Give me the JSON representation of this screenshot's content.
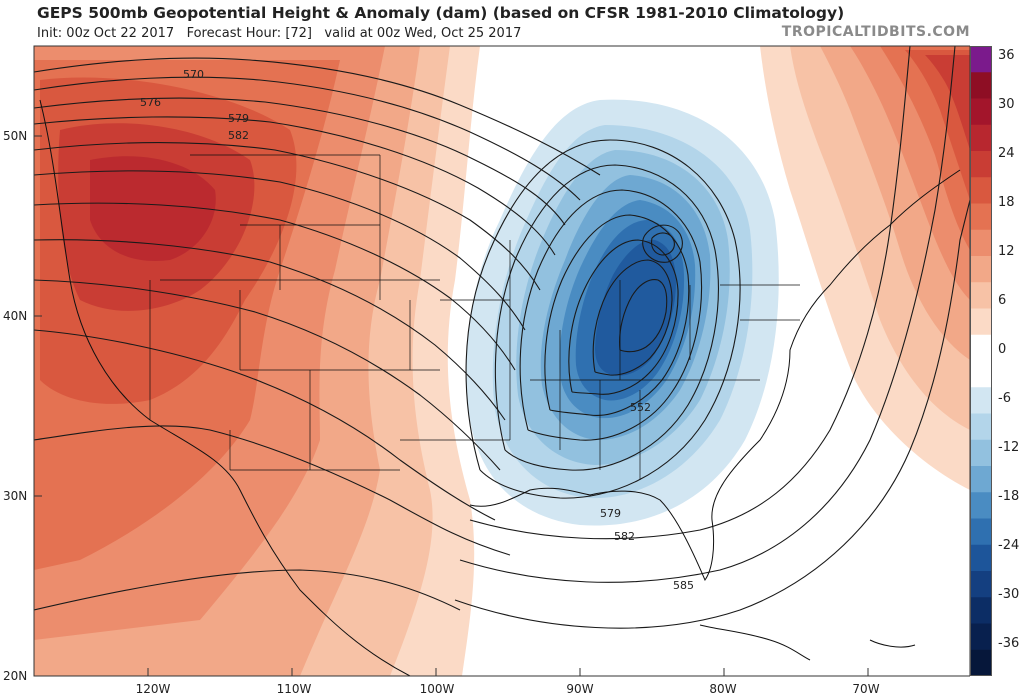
{
  "header": {
    "title": "GEPS 500mb Geopotential Height & Anomaly (dam) (based on CFSR 1981-2010 Climatology)",
    "init": "Init: 00z Oct 22 2017",
    "forecast_hour": "Forecast Hour: [72]",
    "valid": "valid at 00z Wed, Oct 25 2017",
    "brand": "TROPICALTIDBITS.COM"
  },
  "map": {
    "lat_labels": [
      "50N",
      "40N",
      "30N",
      "20N"
    ],
    "lon_labels": [
      "120W",
      "110W",
      "100W",
      "90W",
      "80W",
      "70W"
    ],
    "contour_labels": [
      "570",
      "576",
      "579",
      "582",
      "552",
      "579",
      "582",
      "585"
    ]
  },
  "colorbar": {
    "labels": [
      "36",
      "30",
      "24",
      "18",
      "12",
      "6",
      "0",
      "-6",
      "-12",
      "-18",
      "-24",
      "-30",
      "-36"
    ],
    "colors": [
      "#7b1a8c",
      "#8e0e24",
      "#a3152b",
      "#b8272f",
      "#c93d34",
      "#d9583f",
      "#e47252",
      "#ec8d6d",
      "#f2a888",
      "#f7c2a6",
      "#fbdac6",
      "#ffffff",
      "#ffffff",
      "#d2e6f2",
      "#b3d5ea",
      "#92c1df",
      "#6ea8d2",
      "#4a8cc2",
      "#2f70b0",
      "#1d559a",
      "#143f80",
      "#0c2d65",
      "#08204e",
      "#06173a"
    ]
  }
}
